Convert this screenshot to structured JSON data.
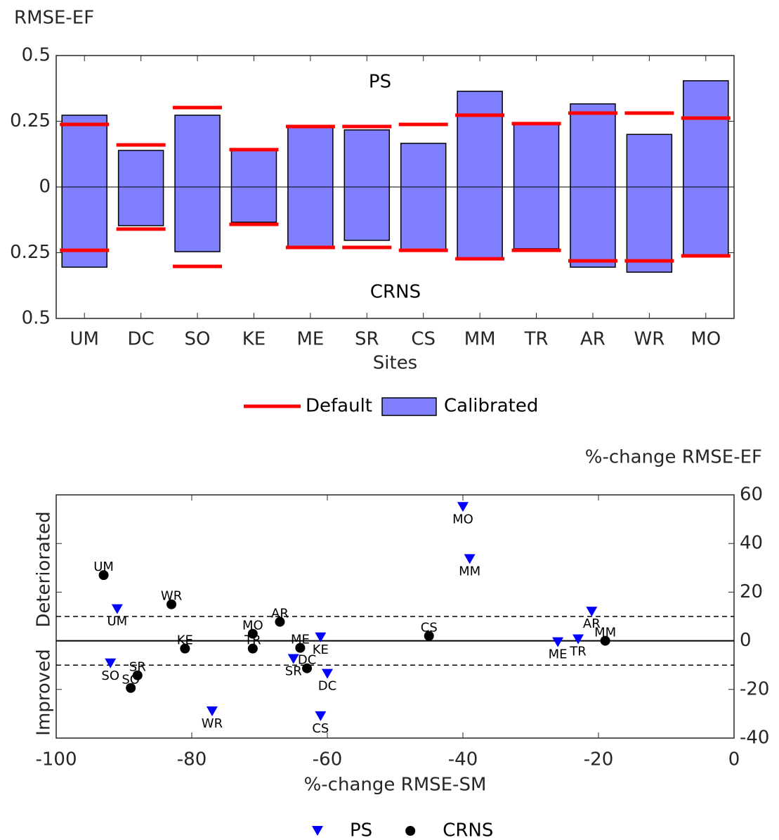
{
  "chart_data": [
    {
      "type": "bar",
      "ylabel": "RMSE-EF",
      "xlabel": "Sites",
      "annotations": [
        "PS",
        "CRNS"
      ],
      "categories": [
        "UM",
        "DC",
        "SO",
        "KE",
        "ME",
        "SR",
        "CS",
        "MM",
        "TR",
        "AR",
        "WR",
        "MO"
      ],
      "ylim": [
        -0.5,
        0.5
      ],
      "yticks": [
        {
          "value": -0.5,
          "label": "0.5"
        },
        {
          "value": -0.25,
          "label": "0.25"
        },
        0,
        0.25,
        0.5
      ],
      "legend": "bottom",
      "series": [
        {
          "name": "Default",
          "color": "#ff0000",
          "style": "line",
          "values": [
            0.238,
            0.16,
            0.302,
            0.142,
            0.23,
            0.23,
            0.238,
            0.273,
            0.241,
            0.281,
            0.281,
            0.262
          ],
          "lower_values": [
            -0.241,
            -0.16,
            -0.302,
            -0.142,
            -0.23,
            -0.23,
            -0.241,
            -0.273,
            -0.241,
            -0.281,
            -0.281,
            -0.262
          ]
        },
        {
          "name": "Calibrated",
          "color": "#7f7fff",
          "style": "box",
          "values": [
            0.273,
            0.139,
            0.273,
            0.139,
            0.23,
            0.217,
            0.166,
            0.364,
            0.238,
            0.316,
            0.2,
            0.404
          ],
          "lower_values": [
            -0.305,
            -0.147,
            -0.246,
            -0.134,
            -0.23,
            -0.203,
            -0.241,
            -0.273,
            -0.235,
            -0.305,
            -0.324,
            -0.262
          ]
        }
      ]
    },
    {
      "type": "scatter",
      "ylabel": "%-change RMSE-EF",
      "xlabel": "%-change RMSE-SM",
      "annotations": [
        "Improved",
        "Deteriorated"
      ],
      "xlim": [
        -100,
        0
      ],
      "ylim": [
        -40,
        60
      ],
      "xticks": [
        -100,
        -80,
        -60,
        -40,
        -20,
        0
      ],
      "yticks": [
        -40,
        -20,
        0,
        20,
        40,
        60
      ],
      "y_axis_side": "right",
      "legend": "bottom",
      "reference_lines": [
        {
          "value": -10,
          "style": "dashed"
        },
        {
          "value": 0,
          "style": "solid"
        },
        {
          "value": 10,
          "style": "dashed"
        }
      ],
      "series": [
        {
          "name": "PS",
          "color": "#0000ff",
          "marker": "triangle-down",
          "point_labels": [
            "MO",
            "MM",
            "UM",
            "AR",
            "SO",
            "SR",
            "DC",
            "CS",
            "WR",
            "ME",
            "TR",
            "KE"
          ],
          "x": [
            -40,
            -39,
            -91,
            -21,
            -92,
            -65,
            -60,
            -61,
            -77,
            -26,
            -23,
            -61
          ],
          "values": [
            55,
            33.6,
            13,
            12,
            -9.3,
            -7.5,
            -13.6,
            -31,
            -29,
            -0.6,
            0.6,
            1.4
          ]
        },
        {
          "name": "CRNS",
          "color": "#000000",
          "marker": "circle",
          "point_labels": [
            "UM",
            "WR",
            "AR",
            "MO",
            "TR",
            "KE",
            "ME",
            "DC",
            "SR",
            "SO",
            "CS",
            "MM"
          ],
          "x": [
            -93,
            -83,
            -67,
            -71,
            -71,
            -81,
            -64,
            -63,
            -88,
            -89,
            -45,
            -19
          ],
          "values": [
            27,
            15,
            7.8,
            2.9,
            -3.2,
            -3.2,
            -2.9,
            -11.3,
            -14.2,
            -19.4,
            2,
            0
          ]
        }
      ]
    }
  ]
}
